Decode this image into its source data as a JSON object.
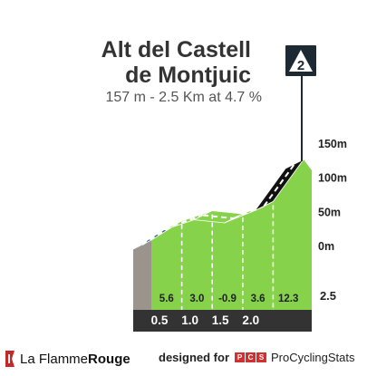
{
  "climb": {
    "title_line1": "Alt del Castell",
    "title_line2": "de Montjuic",
    "subtitle": "157 m - 2.5 Km at 4.7 %",
    "category": "2"
  },
  "chart_data": {
    "type": "area",
    "title": "Alt del Castell de Montjuic",
    "xlabel": "",
    "ylabel": "",
    "x_tick_labels": [
      "0.5",
      "1.0",
      "1.5",
      "2.0",
      "2.5"
    ],
    "y_tick_labels": [
      "150m",
      "100m",
      "50m",
      "0m"
    ],
    "ylim": [
      0,
      150
    ],
    "xlim": [
      0,
      2.5
    ],
    "segments": [
      {
        "start_km": 0.0,
        "end_km": 0.5,
        "gradient": 5.6
      },
      {
        "start_km": 0.5,
        "end_km": 1.0,
        "gradient": 3.0
      },
      {
        "start_km": 1.0,
        "end_km": 1.5,
        "gradient": -0.9
      },
      {
        "start_km": 1.5,
        "end_km": 2.0,
        "gradient": 3.6
      },
      {
        "start_km": 2.0,
        "end_km": 2.5,
        "gradient": 12.3
      }
    ],
    "colors": {
      "gentle": "#1d6d8a",
      "moderate": "#86d24a",
      "steep": "#111111",
      "base": "#9a948c",
      "axis_band": "#333333"
    }
  },
  "footer": {
    "brand_part1": "La Flamme",
    "brand_part2": "Rouge",
    "designed_for": "designed for",
    "pcs_letters": [
      "P",
      "C",
      "S"
    ],
    "pcs_name": "ProCyclingStats"
  }
}
